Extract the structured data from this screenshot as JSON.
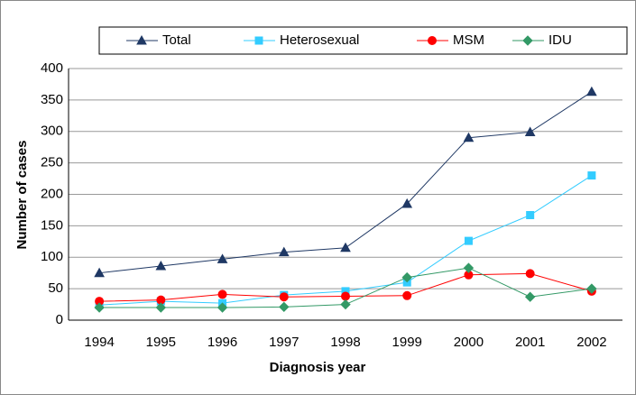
{
  "chart_data": {
    "type": "line",
    "x_label": "Diagnosis year",
    "y_label": "Number of cases",
    "categories": [
      "1994",
      "1995",
      "1996",
      "1997",
      "1998",
      "1999",
      "2000",
      "2001",
      "2002"
    ],
    "series": [
      {
        "name": "Total",
        "color": "#1f3864",
        "marker": "triangle",
        "values": [
          75,
          86,
          97,
          108,
          115,
          185,
          290,
          299,
          363
        ]
      },
      {
        "name": "Heterosexual",
        "color": "#33ccff",
        "marker": "square",
        "values": [
          24,
          30,
          27,
          40,
          46,
          60,
          126,
          167,
          230
        ]
      },
      {
        "name": "MSM",
        "color": "#ff0000",
        "marker": "circle",
        "values": [
          30,
          32,
          41,
          37,
          38,
          39,
          72,
          74,
          46
        ]
      },
      {
        "name": "IDU",
        "color": "#339966",
        "marker": "diamond",
        "values": [
          20,
          20,
          20,
          21,
          25,
          68,
          83,
          37,
          50
        ]
      }
    ],
    "ylim": [
      0,
      400
    ],
    "yticks": [
      0,
      50,
      100,
      150,
      200,
      250,
      300,
      350,
      400
    ],
    "grid": true
  }
}
